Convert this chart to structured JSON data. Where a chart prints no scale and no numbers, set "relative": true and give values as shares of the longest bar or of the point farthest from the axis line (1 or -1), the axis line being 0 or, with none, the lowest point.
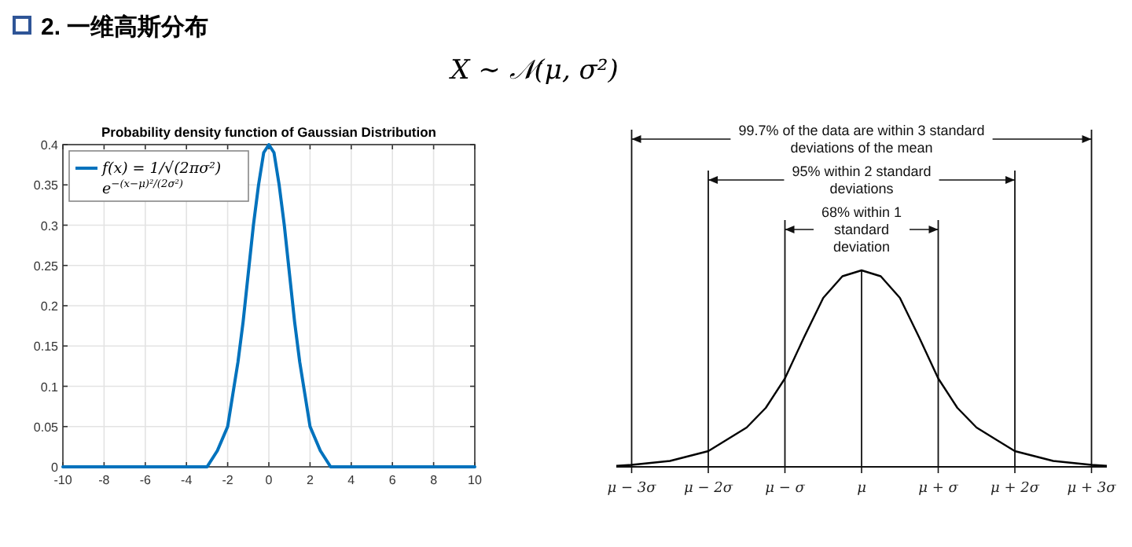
{
  "chart_data": [
    {
      "type": "other",
      "title": "2. 一维高斯分布",
      "annotations": [
        "X ∼ 𝒩(μ, σ²)"
      ]
    },
    {
      "type": "line",
      "title": "Probability density function of Gaussian Distribution",
      "x": [
        -10,
        -4,
        -3.5,
        -3,
        -2.5,
        -2,
        -1.75,
        -1.5,
        -1.25,
        -1,
        -0.75,
        -0.5,
        -0.25,
        0,
        0.25,
        0.5,
        0.75,
        1,
        1.25,
        1.5,
        1.75,
        2,
        2.5,
        3,
        3.5,
        4,
        10
      ],
      "series": [
        {
          "name": "f(x) = 1/√(2πσ²) e$^{−(x−μ)²/(2σ²)}$",
          "color": "#0072bd",
          "values": [
            0,
            0,
            0,
            0,
            0.02,
            0.05,
            0.09,
            0.13,
            0.18,
            0.24,
            0.3,
            0.35,
            0.39,
            0.4,
            0.39,
            0.35,
            0.3,
            0.24,
            0.18,
            0.13,
            0.09,
            0.05,
            0.02,
            0,
            0,
            0,
            0
          ]
        }
      ],
      "xlim": [
        -10,
        10
      ],
      "ylim": [
        0,
        0.4
      ],
      "xticks": [
        -10,
        -8,
        -6,
        -4,
        -2,
        0,
        2,
        4,
        6,
        8,
        10
      ],
      "yticks": [
        0,
        0.05,
        0.1,
        0.15,
        0.2,
        0.25,
        0.3,
        0.35,
        0.4
      ],
      "grid": true,
      "legend": "top left"
    },
    {
      "type": "line",
      "relative": true,
      "x": [
        -3.2,
        -3,
        -2.5,
        -2,
        -1.5,
        -1.25,
        -1,
        -0.75,
        -0.5,
        -0.25,
        0,
        0.25,
        0.5,
        0.75,
        1,
        1.25,
        1.5,
        2,
        2.5,
        3,
        3.2
      ],
      "series": [
        {
          "color": "#000000",
          "values": [
            0.005,
            0.01,
            0.03,
            0.08,
            0.2,
            0.3,
            0.45,
            0.66,
            0.86,
            0.97,
            1,
            0.97,
            0.86,
            0.66,
            0.45,
            0.3,
            0.2,
            0.08,
            0.03,
            0.01,
            0.005
          ]
        }
      ],
      "xlim": [
        -3.2,
        3.2
      ],
      "xticks": [
        {
          "value": -3,
          "label": "μ − 3σ"
        },
        {
          "value": -2,
          "label": "μ − 2σ"
        },
        {
          "value": -1,
          "label": "μ − σ"
        },
        {
          "value": 0,
          "label": "μ"
        },
        {
          "value": 1,
          "label": "μ + σ"
        },
        {
          "value": 2,
          "label": "μ + 2σ"
        },
        {
          "value": 3,
          "label": "μ + 3σ"
        }
      ],
      "ref_lines": [
        {
          "axis": "x",
          "value": -3
        },
        {
          "axis": "x",
          "value": -2
        },
        {
          "axis": "x",
          "value": -1
        },
        {
          "axis": "x",
          "value": 0
        },
        {
          "axis": "x",
          "value": 1
        },
        {
          "axis": "x",
          "value": 2
        },
        {
          "axis": "x",
          "value": 3
        }
      ],
      "annotations": [
        "99.7% of the data are within 3 standard deviations of the mean",
        "95% within 2 standard deviations",
        "68% within 1 standard deviation"
      ]
    }
  ]
}
